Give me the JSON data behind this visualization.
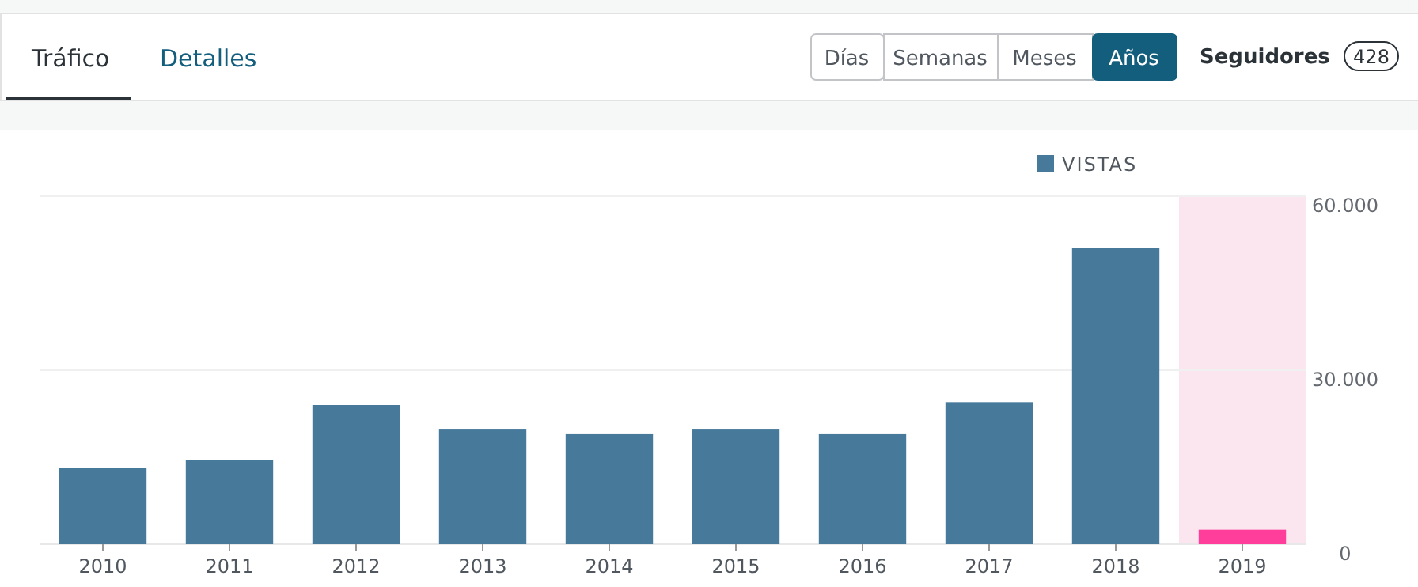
{
  "chart_data": {
    "type": "bar",
    "annotations": [
      "Tráfico",
      "Detalles",
      "Días",
      "Semanas",
      "Meses",
      "Años",
      "Seguidores",
      "428"
    ],
    "categories": [
      "2010",
      "2011",
      "2012",
      "2013",
      "2014",
      "2015",
      "2016",
      "2017",
      "2018",
      "2019"
    ],
    "series": [
      {
        "name": "VISTAS",
        "color": "#47799b",
        "colors": [
          "#47799b",
          "#47799b",
          "#47799b",
          "#47799b",
          "#47799b",
          "#47799b",
          "#47799b",
          "#47799b",
          "#47799b",
          "#ff3d9a"
        ],
        "values": [
          13100,
          14500,
          24000,
          19900,
          19100,
          19900,
          19100,
          24500,
          51000,
          2500
        ]
      }
    ],
    "ylim": [
      0,
      60000
    ],
    "yticks": [
      0,
      {
        "value": 30000,
        "label": "30.000"
      },
      {
        "value": 60000,
        "label": "60.000"
      }
    ],
    "bands": [
      {
        "axis": "x",
        "from": "2019",
        "to": "2019",
        "color": "#fbe6ef"
      }
    ],
    "grid": "y",
    "legend": "top right"
  }
}
